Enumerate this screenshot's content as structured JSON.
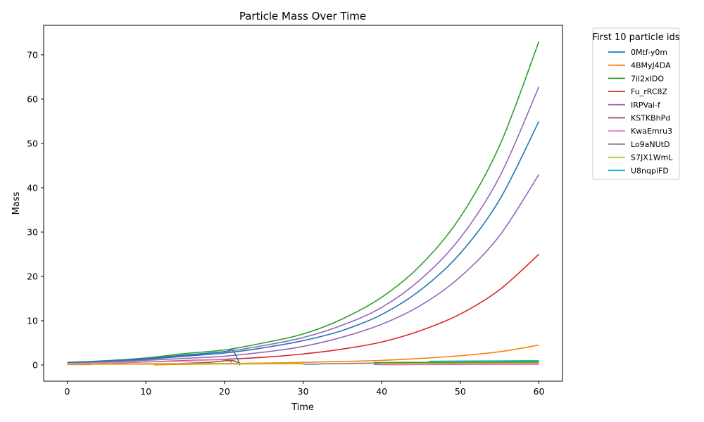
{
  "chart_data": {
    "type": "line",
    "title": "Particle Mass Over Time",
    "xlabel": "Time",
    "ylabel": "Mass",
    "xlim": [
      -3,
      63
    ],
    "ylim": [
      -3.65,
      76.65
    ],
    "xticks": [
      0,
      10,
      20,
      30,
      40,
      50,
      60
    ],
    "yticks": [
      0,
      10,
      20,
      30,
      40,
      50,
      60,
      70
    ],
    "grid": false,
    "legend": {
      "title": "First 10 particle ids",
      "placement": "outside-top-right",
      "entries": [
        {
          "label": "0Mtf-y0m",
          "color": "#1f77b4"
        },
        {
          "label": "4BMyJ4DA",
          "color": "#ff7f0e"
        },
        {
          "label": "7il2xIDO",
          "color": "#2ca02c"
        },
        {
          "label": "Fu_rRC8Z",
          "color": "#d62728"
        },
        {
          "label": "IRPVai-f",
          "color": "#9467bd"
        },
        {
          "label": "KSTKBhPd",
          "color": "#8c564b"
        },
        {
          "label": "KwaEmru3",
          "color": "#e377c2"
        },
        {
          "label": "Lo9aNUtD",
          "color": "#7f7f7f"
        },
        {
          "label": "S7JX1WmL",
          "color": "#bcbd22"
        },
        {
          "label": "U8nqpiFD",
          "color": "#17becf"
        }
      ]
    },
    "series": [
      {
        "color": "#2ca02c",
        "x": [
          0,
          5,
          10,
          15,
          20,
          25,
          30,
          35,
          40,
          45,
          50,
          55,
          60
        ],
        "y": [
          0.6,
          0.98,
          1.6,
          2.6,
          3.4,
          5.0,
          7.0,
          10.4,
          15.3,
          22.6,
          33.4,
          49.5,
          73.0
        ]
      },
      {
        "color": "#9467bd",
        "x": [
          0,
          5,
          10,
          15,
          20,
          25,
          30,
          35,
          40,
          45,
          50,
          55,
          60
        ],
        "y": [
          0.55,
          0.9,
          1.45,
          2.3,
          3.0,
          4.4,
          6.2,
          9.0,
          13.0,
          19.4,
          28.7,
          42.5,
          62.8
        ]
      },
      {
        "color": "#1f77b4",
        "x": [
          0,
          5,
          10,
          15,
          20,
          25,
          30,
          35,
          40,
          45,
          50,
          55,
          60
        ],
        "y": [
          0.5,
          0.8,
          1.3,
          2.0,
          2.7,
          3.9,
          5.5,
          7.8,
          11.4,
          17.0,
          25.2,
          37.3,
          55.0
        ]
      },
      {
        "color": "#9467bd",
        "x": [
          0,
          5,
          10,
          15,
          20,
          25,
          30,
          35,
          40,
          45,
          50,
          55,
          60
        ],
        "y": [
          0.45,
          0.7,
          1.05,
          1.5,
          2.0,
          2.9,
          4.2,
          6.3,
          9.2,
          13.5,
          19.9,
          29.2,
          43.0
        ]
      },
      {
        "color": "#d62728",
        "x": [
          0,
          5,
          10,
          15,
          20,
          25,
          30,
          35,
          40,
          45,
          50,
          55,
          60
        ],
        "y": [
          0.3,
          0.45,
          0.7,
          1.0,
          1.3,
          1.75,
          2.5,
          3.6,
          5.2,
          7.8,
          11.5,
          17.0,
          25.0
        ]
      },
      {
        "color": "#ff7f0e",
        "x": [
          11,
          15,
          20,
          25,
          30,
          35,
          40,
          45,
          50,
          55,
          60
        ],
        "y": [
          0.05,
          0.15,
          0.3,
          0.45,
          0.6,
          0.8,
          1.05,
          1.5,
          2.1,
          3.0,
          4.5
        ]
      },
      {
        "color": "#1f77b4",
        "x": [
          0,
          5,
          10,
          15,
          20,
          21,
          22
        ],
        "y": [
          0.55,
          0.9,
          1.45,
          2.2,
          3.0,
          3.4,
          0.1
        ]
      },
      {
        "color": "#e377c2",
        "x": [
          0,
          5,
          10,
          15,
          20,
          21
        ],
        "y": [
          0.35,
          0.5,
          0.7,
          0.9,
          1.2,
          0.3
        ]
      },
      {
        "color": "#8c564b",
        "x": [
          14,
          18,
          21,
          22
        ],
        "y": [
          0.3,
          0.6,
          1.0,
          0.0
        ]
      },
      {
        "color": "#d62728",
        "x": [
          0,
          3
        ],
        "y": [
          0.1,
          0.1
        ]
      },
      {
        "color": "#ff7f0e",
        "x": [
          0,
          10,
          20,
          30
        ],
        "y": [
          0.15,
          0.2,
          0.25,
          0.3
        ]
      },
      {
        "color": "#bcbd22",
        "x": [
          0,
          10,
          20,
          30
        ],
        "y": [
          0.2,
          0.3,
          0.35,
          0.4
        ]
      },
      {
        "color": "#1f77b4",
        "x": [
          30,
          32
        ],
        "y": [
          0.2,
          0.2
        ]
      },
      {
        "color": "#7f7f7f",
        "x": [
          32,
          40,
          50,
          60
        ],
        "y": [
          0.25,
          0.45,
          0.6,
          0.7
        ]
      },
      {
        "color": "#17becf",
        "x": [
          46,
          50,
          55,
          60
        ],
        "y": [
          0.85,
          0.9,
          0.95,
          1.0
        ]
      },
      {
        "color": "#2ca02c",
        "x": [
          39,
          45,
          50,
          55,
          60
        ],
        "y": [
          0.55,
          0.6,
          0.65,
          0.7,
          0.75
        ]
      },
      {
        "color": "#9467bd",
        "x": [
          39,
          45,
          50,
          55,
          60
        ],
        "y": [
          0.1,
          0.15,
          0.2,
          0.2,
          0.25
        ]
      },
      {
        "color": "#e377c2",
        "x": [
          40,
          45,
          50,
          55,
          60
        ],
        "y": [
          0.05,
          0.1,
          0.1,
          0.15,
          0.15
        ]
      },
      {
        "color": "#8c564b",
        "x": [
          42,
          49,
          50,
          60
        ],
        "y": [
          0.4,
          0.3,
          0.45,
          0.5
        ]
      },
      {
        "color": "#bcbd22",
        "x": [
          40,
          50,
          60
        ],
        "y": [
          0.3,
          0.4,
          0.45
        ]
      }
    ]
  }
}
